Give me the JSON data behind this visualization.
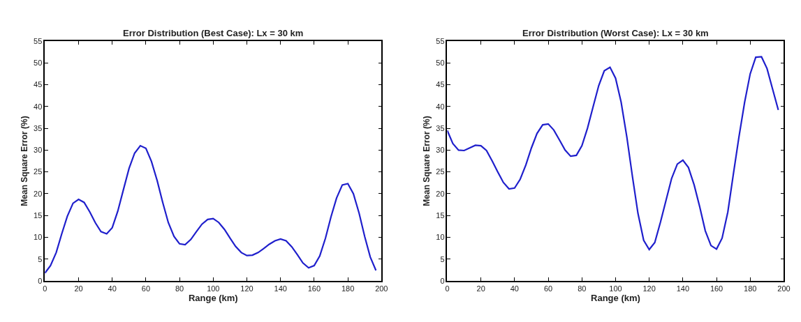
{
  "chart_data": [
    {
      "type": "line",
      "title": "Error Distribution (Best Case): Lx = 30 km",
      "xlabel": "Range (km)",
      "ylabel": "Mean Square Error (%)",
      "xlim": [
        0,
        200
      ],
      "xticks": [
        0,
        20,
        40,
        60,
        80,
        100,
        120,
        140,
        160,
        180,
        200
      ],
      "ylim": [
        0,
        55
      ],
      "yticks": [
        0,
        5,
        10,
        15,
        20,
        25,
        30,
        35,
        40,
        45,
        50,
        55
      ],
      "line_style": "solid",
      "x": [
        0,
        3.3,
        6.7,
        10,
        13.3,
        16.7,
        20,
        23.3,
        26.7,
        30,
        33.3,
        36.7,
        40,
        43.3,
        46.7,
        50,
        53.3,
        56.7,
        60,
        63.3,
        66.7,
        70,
        73.3,
        76.7,
        80,
        83.3,
        86.7,
        90,
        93.3,
        96.7,
        100,
        103.3,
        106.7,
        110,
        113.3,
        116.7,
        120,
        123.3,
        126.7,
        130,
        133.3,
        136.7,
        140,
        143.3,
        146.7,
        150,
        153.3,
        156.7,
        160,
        163.3,
        166.7,
        170,
        173.3,
        176.7,
        180,
        183.3,
        186.7,
        190,
        193.3,
        196.7
      ],
      "series": [
        {
          "color": "#1f1fcc",
          "values": [
            1.8,
            3.5,
            6.5,
            10.8,
            14.8,
            17.8,
            18.7,
            18,
            15.8,
            13.3,
            11.3,
            10.8,
            12.2,
            16,
            21,
            25.8,
            29.3,
            31,
            30.4,
            27.4,
            23,
            18,
            13.4,
            10.2,
            8.5,
            8.3,
            9.5,
            11.3,
            13,
            14.1,
            14.3,
            13.4,
            11.8,
            9.8,
            7.9,
            6.5,
            5.8,
            5.9,
            6.5,
            7.4,
            8.4,
            9.2,
            9.6,
            9.2,
            7.8,
            6,
            4.1,
            3,
            3.5,
            5.7,
            9.8,
            14.7,
            19,
            22,
            22.3,
            20,
            15.5,
            10.2,
            5.5,
            2.4
          ]
        }
      ]
    },
    {
      "type": "line",
      "title": "Error Distribution (Worst Case): Lx = 30 km",
      "xlabel": "Range (km)",
      "ylabel": "Mean Square Error (%)",
      "xlim": [
        0,
        200
      ],
      "xticks": [
        0,
        20,
        40,
        60,
        80,
        100,
        120,
        140,
        160,
        180,
        200
      ],
      "ylim": [
        0,
        55
      ],
      "yticks": [
        0,
        5,
        10,
        15,
        20,
        25,
        30,
        35,
        40,
        45,
        50,
        55
      ],
      "line_style": "solid",
      "x": [
        0,
        3.3,
        6.7,
        10,
        13.3,
        16.7,
        20,
        23.3,
        26.7,
        30,
        33.3,
        36.7,
        40,
        43.3,
        46.7,
        50,
        53.3,
        56.7,
        60,
        63.3,
        66.7,
        70,
        73.3,
        76.7,
        80,
        83.3,
        86.7,
        90,
        93.3,
        96.7,
        100,
        103.3,
        106.7,
        110,
        113.3,
        116.7,
        120,
        123.3,
        126.7,
        130,
        133.3,
        136.7,
        140,
        143.3,
        146.7,
        150,
        153.3,
        156.7,
        160,
        163.3,
        166.7,
        170,
        173.3,
        176.7,
        180,
        183.3,
        186.7,
        190,
        193.3,
        196.7
      ],
      "series": [
        {
          "color": "#1f1fcc",
          "values": [
            34.5,
            31.5,
            30,
            29.9,
            30.5,
            31.1,
            31,
            29.9,
            27.5,
            25,
            22.6,
            21.1,
            21.3,
            23.3,
            26.6,
            30.5,
            33.8,
            35.8,
            36,
            34.6,
            32.3,
            30,
            28.6,
            28.8,
            31,
            35,
            40,
            44.8,
            48.2,
            49,
            46.5,
            41,
            33,
            24,
            15.5,
            9.3,
            7.2,
            8.8,
            13.5,
            18.5,
            23.5,
            26.8,
            27.7,
            26,
            22,
            17,
            11.5,
            8.1,
            7.3,
            9.8,
            15.8,
            24.5,
            33,
            41,
            47.5,
            51.3,
            51.4,
            48.7,
            44,
            39.2
          ]
        }
      ]
    }
  ]
}
